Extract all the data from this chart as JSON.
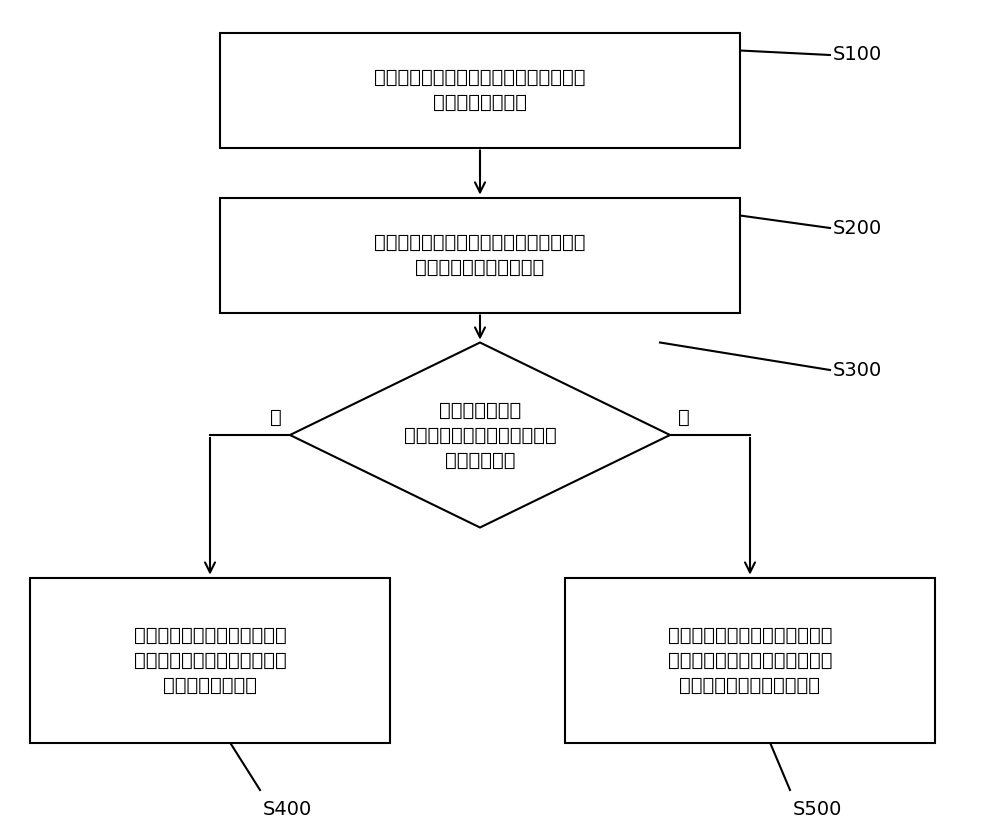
{
  "background_color": "#ffffff",
  "S100_text": "对安装有户用光伏电站的区域进行划分，\n得到多个网格区域",
  "S200_text": "统计所述网格区域中在指定时长内停机的\n所述户用光伏电站的数量",
  "S300_text": "判断停机的所述\n户用光伏电站的所述数量是否\n小于设定数量",
  "S400_text": "判定所述户用光伏电站停机故\n障的原因为外线故障导致，此\n时不生成报警信息",
  "S500_text": "判定所述户用光伏电站停机故障\n的原因为户用光伏电站内部故障\n导致，此时才生成报警信息",
  "no_label": "否",
  "yes_label": "是",
  "S100_label": "S100",
  "S200_label": "S200",
  "S300_label": "S300",
  "S400_label": "S400",
  "S500_label": "S500",
  "box_color": "#ffffff",
  "box_edge_color": "#000000",
  "text_color": "#000000",
  "arrow_color": "#000000",
  "line_width": 1.5,
  "fontsize": 14
}
